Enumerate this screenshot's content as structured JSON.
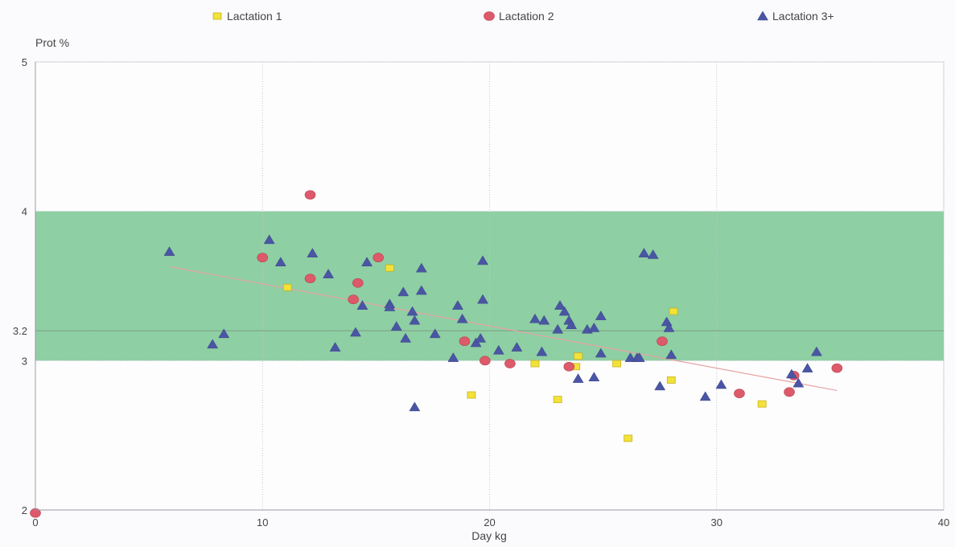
{
  "chart_data": {
    "type": "scatter",
    "title": "",
    "xlabel": "Day kg",
    "ylabel": "Prot %",
    "xlim": [
      0,
      40
    ],
    "ylim": [
      2,
      5
    ],
    "x_ticks": [
      "0",
      "10",
      "20",
      "30",
      "40"
    ],
    "y_ticks": [
      "2",
      "3",
      "3.2",
      "4",
      "5"
    ],
    "y_tick_values": [
      2,
      3,
      3.2,
      4,
      5
    ],
    "grid": true,
    "legend_position": "top",
    "target_band": {
      "y_min": 3.0,
      "y_max": 4.0,
      "color": "#8ecfa3"
    },
    "reference_line": {
      "y": 3.2,
      "color": "#7aa487"
    },
    "trend_line": {
      "x": [
        5.9,
        35.3
      ],
      "y": [
        3.63,
        2.8
      ],
      "color": "#e7a3a3"
    },
    "series": [
      {
        "name": "Lactation 1",
        "marker": "square",
        "color": "#f2e23a",
        "points": [
          [
            11.1,
            3.49
          ],
          [
            15.6,
            3.62
          ],
          [
            19.2,
            2.77
          ],
          [
            22.0,
            2.98
          ],
          [
            23.0,
            2.74
          ],
          [
            23.8,
            2.96
          ],
          [
            23.9,
            3.03
          ],
          [
            25.6,
            2.98
          ],
          [
            26.1,
            2.48
          ],
          [
            28.0,
            2.87
          ],
          [
            28.1,
            3.33
          ],
          [
            32.0,
            2.71
          ]
        ]
      },
      {
        "name": "Lactation 2",
        "marker": "circle",
        "color": "#dc5a6a",
        "points": [
          [
            0.0,
            1.98
          ],
          [
            10.0,
            3.69
          ],
          [
            12.1,
            4.11
          ],
          [
            12.1,
            3.55
          ],
          [
            14.0,
            3.41
          ],
          [
            14.2,
            3.52
          ],
          [
            15.1,
            3.69
          ],
          [
            18.9,
            3.13
          ],
          [
            19.8,
            3.0
          ],
          [
            20.9,
            2.98
          ],
          [
            23.5,
            2.96
          ],
          [
            27.6,
            3.13
          ],
          [
            31.0,
            2.78
          ],
          [
            33.2,
            2.79
          ],
          [
            33.4,
            2.9
          ],
          [
            35.3,
            2.95
          ]
        ]
      },
      {
        "name": "Lactation 3+",
        "marker": "triangle",
        "color": "#4a56a4",
        "points": [
          [
            5.9,
            3.73
          ],
          [
            7.8,
            3.11
          ],
          [
            8.3,
            3.18
          ],
          [
            10.3,
            3.81
          ],
          [
            10.8,
            3.66
          ],
          [
            12.2,
            3.72
          ],
          [
            12.9,
            3.58
          ],
          [
            13.2,
            3.09
          ],
          [
            14.1,
            3.19
          ],
          [
            14.4,
            3.37
          ],
          [
            14.6,
            3.66
          ],
          [
            15.6,
            3.38
          ],
          [
            15.6,
            3.36
          ],
          [
            15.9,
            3.23
          ],
          [
            16.2,
            3.46
          ],
          [
            16.3,
            3.15
          ],
          [
            16.6,
            3.33
          ],
          [
            16.7,
            3.27
          ],
          [
            16.7,
            2.69
          ],
          [
            17.0,
            3.62
          ],
          [
            17.0,
            3.47
          ],
          [
            17.6,
            3.18
          ],
          [
            18.4,
            3.02
          ],
          [
            18.6,
            3.37
          ],
          [
            18.8,
            3.28
          ],
          [
            19.4,
            3.12
          ],
          [
            19.6,
            3.15
          ],
          [
            19.7,
            3.41
          ],
          [
            19.7,
            3.67
          ],
          [
            20.4,
            3.07
          ],
          [
            21.2,
            3.09
          ],
          [
            22.0,
            3.28
          ],
          [
            22.3,
            3.06
          ],
          [
            22.4,
            3.27
          ],
          [
            23.0,
            3.21
          ],
          [
            23.1,
            3.37
          ],
          [
            23.3,
            3.33
          ],
          [
            23.5,
            3.27
          ],
          [
            23.6,
            3.24
          ],
          [
            23.9,
            2.88
          ],
          [
            24.3,
            3.21
          ],
          [
            24.6,
            2.89
          ],
          [
            24.6,
            3.22
          ],
          [
            24.9,
            3.05
          ],
          [
            24.9,
            3.3
          ],
          [
            26.2,
            3.02
          ],
          [
            26.5,
            3.02
          ],
          [
            26.6,
            3.02
          ],
          [
            26.8,
            3.72
          ],
          [
            27.2,
            3.71
          ],
          [
            27.5,
            2.83
          ],
          [
            27.8,
            3.26
          ],
          [
            27.9,
            3.22
          ],
          [
            28.0,
            3.04
          ],
          [
            29.5,
            2.76
          ],
          [
            30.2,
            2.84
          ],
          [
            33.3,
            2.91
          ],
          [
            33.6,
            2.85
          ],
          [
            34.0,
            2.95
          ],
          [
            34.4,
            3.06
          ]
        ]
      }
    ]
  }
}
